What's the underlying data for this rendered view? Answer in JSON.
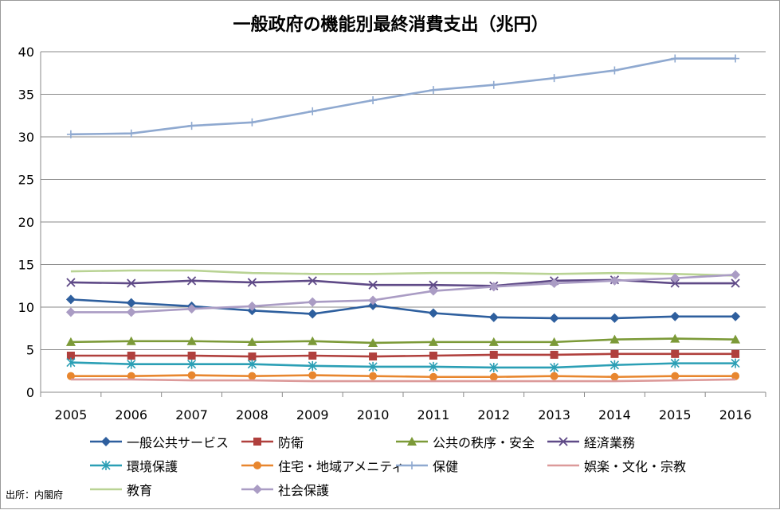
{
  "chart_data": {
    "type": "line",
    "title": "一般政府の機能別最終消費支出（兆円）",
    "x": [
      "2005",
      "2006",
      "2007",
      "2008",
      "2009",
      "2010",
      "2011",
      "2012",
      "2013",
      "2014",
      "2015",
      "2016"
    ],
    "ylim": [
      0,
      40
    ],
    "yticks": [
      0,
      5,
      10,
      15,
      20,
      25,
      30,
      35,
      40
    ],
    "grid": "horizontal",
    "legend_position": "bottom",
    "series": [
      {
        "name": "一般公共サービス",
        "color": "#2e5f9e",
        "marker": "diamond",
        "values": [
          10.9,
          10.5,
          10.1,
          9.6,
          9.2,
          10.2,
          9.3,
          8.8,
          8.7,
          8.7,
          8.9,
          8.9
        ]
      },
      {
        "name": "防衛",
        "color": "#b0403d",
        "marker": "square",
        "values": [
          4.3,
          4.3,
          4.3,
          4.2,
          4.3,
          4.2,
          4.3,
          4.4,
          4.4,
          4.5,
          4.5,
          4.5
        ]
      },
      {
        "name": "公共の秩序・安全",
        "color": "#7c9a38",
        "marker": "triangle",
        "values": [
          5.9,
          6.0,
          6.0,
          5.9,
          6.0,
          5.8,
          5.9,
          5.9,
          5.9,
          6.2,
          6.3,
          6.2
        ]
      },
      {
        "name": "経済業務",
        "color": "#5f4a87",
        "marker": "x",
        "values": [
          12.9,
          12.8,
          13.1,
          12.9,
          13.1,
          12.6,
          12.6,
          12.5,
          13.1,
          13.2,
          12.8,
          12.8
        ]
      },
      {
        "name": "環境保護",
        "color": "#2b9fb5",
        "marker": "star",
        "values": [
          3.5,
          3.3,
          3.3,
          3.3,
          3.1,
          3.0,
          3.0,
          2.9,
          2.9,
          3.2,
          3.4,
          3.4
        ]
      },
      {
        "name": "住宅・地域アメニティ",
        "color": "#e8862e",
        "marker": "circle",
        "values": [
          1.9,
          1.9,
          2.0,
          1.9,
          2.0,
          1.9,
          1.8,
          1.8,
          1.9,
          1.8,
          1.9,
          1.9
        ]
      },
      {
        "name": "保健",
        "color": "#8fa9d0",
        "marker": "plus",
        "values": [
          30.3,
          30.4,
          31.3,
          31.7,
          33.0,
          34.3,
          35.5,
          36.1,
          36.9,
          37.8,
          39.2,
          39.2
        ]
      },
      {
        "name": "娯楽・文化・宗教",
        "color": "#dc9a9a",
        "marker": "none",
        "values": [
          1.5,
          1.5,
          1.4,
          1.4,
          1.3,
          1.3,
          1.3,
          1.3,
          1.3,
          1.3,
          1.4,
          1.5
        ]
      },
      {
        "name": "教育",
        "color": "#b9d394",
        "marker": "none",
        "values": [
          14.2,
          14.3,
          14.3,
          14.0,
          13.9,
          13.9,
          14.0,
          14.0,
          13.9,
          14.0,
          13.9,
          13.7
        ]
      },
      {
        "name": "社会保護",
        "color": "#aa9cc4",
        "marker": "diamond",
        "values": [
          9.4,
          9.4,
          9.8,
          10.1,
          10.6,
          10.8,
          11.9,
          12.4,
          12.8,
          13.1,
          13.4,
          13.8
        ]
      }
    ]
  },
  "source_note": "出所：内閣府"
}
